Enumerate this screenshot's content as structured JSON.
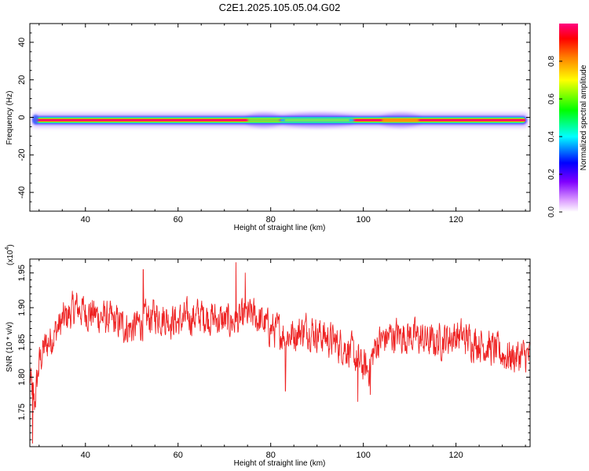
{
  "figure": {
    "title": "C2E1.2025.105.05.04.G02"
  },
  "chart_data": [
    {
      "type": "heatmap",
      "xlabel": "Height of straight line (km)",
      "ylabel": "Frequency (Hz)",
      "xlim": [
        28,
        136
      ],
      "ylim": [
        -50,
        50
      ],
      "x_ticks": [
        40,
        60,
        80,
        100,
        120
      ],
      "y_ticks": [
        -40,
        -20,
        0,
        20,
        40
      ],
      "colorbar": {
        "label": "Normalized spectral amplitude",
        "range": [
          0,
          1
        ],
        "ticks": [
          "0.0",
          "0.2",
          "0.4",
          "0.6",
          "0.8"
        ],
        "colors": [
          "#ffffff",
          "#b000ff",
          "#0000ff",
          "#00ffff",
          "#00ff00",
          "#ffff00",
          "#ff8000",
          "#ff0000",
          "#ff0080"
        ]
      },
      "band": {
        "center_frequency": -1.5,
        "strong_from": 29,
        "strong_to": 135,
        "weak_segments": [
          {
            "x_from": 75,
            "x_to": 82,
            "amplitude": 0.6
          },
          {
            "x_from": 82,
            "x_to": 98,
            "amplitude": 0.4
          },
          {
            "x_from": 104,
            "x_to": 112,
            "amplitude": 0.7
          }
        ]
      }
    },
    {
      "type": "line",
      "xlabel": "Height of straight line (km)",
      "ylabel": "SNR (10 * v/v)",
      "scale_label": "(x10",
      "scale_exponent": "4",
      "xlim": [
        28,
        136
      ],
      "ylim": [
        1.7,
        1.97
      ],
      "x_ticks": [
        40,
        60,
        80,
        100,
        120
      ],
      "y_ticks": [
        "1.75",
        "1.80",
        "1.85",
        "1.90",
        "1.95"
      ],
      "color": "#ee2222",
      "trend": {
        "x": [
          28,
          29,
          30,
          31,
          33,
          35,
          38,
          42,
          46,
          50,
          55,
          60,
          65,
          70,
          73,
          76,
          80,
          84,
          88,
          91,
          94,
          97,
          99,
          101,
          103,
          106,
          110,
          115,
          120,
          125,
          128,
          131,
          134,
          136
        ],
        "y": [
          1.8,
          1.76,
          1.82,
          1.84,
          1.86,
          1.88,
          1.9,
          1.89,
          1.88,
          1.87,
          1.89,
          1.88,
          1.89,
          1.88,
          1.88,
          1.89,
          1.87,
          1.86,
          1.87,
          1.86,
          1.85,
          1.84,
          1.82,
          1.81,
          1.85,
          1.86,
          1.86,
          1.85,
          1.86,
          1.85,
          1.84,
          1.83,
          1.83,
          1.83
        ]
      },
      "noise_amplitude": 0.028,
      "peaks": [
        {
          "x": 72.5,
          "y": 1.965
        },
        {
          "x": 52.5,
          "y": 1.955
        },
        {
          "x": 74.5,
          "y": 1.95
        }
      ],
      "dips": [
        {
          "x": 28.6,
          "y": 1.705
        },
        {
          "x": 98.8,
          "y": 1.765
        },
        {
          "x": 83.2,
          "y": 1.78
        },
        {
          "x": 101.5,
          "y": 1.775
        }
      ]
    }
  ]
}
